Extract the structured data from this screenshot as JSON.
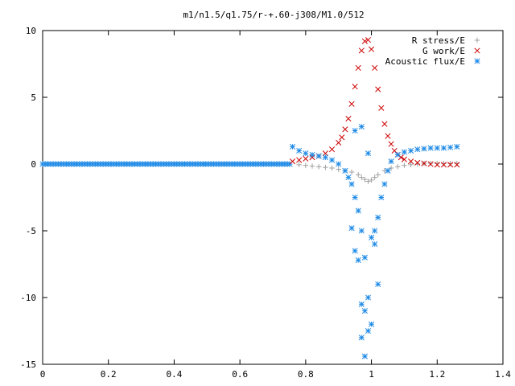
{
  "chart_data": {
    "type": "scatter",
    "title": "m1/n1.5/q1.75/r-+.60-j308/M1.0/512",
    "xlabel": "",
    "ylabel": "",
    "xlim": [
      0,
      1.4
    ],
    "ylim": [
      -15,
      10
    ],
    "x_ticks": [
      "0",
      "0.2",
      "0.4",
      "0.6",
      "0.8",
      "1",
      "1.2",
      "1.4"
    ],
    "y_ticks": [
      "10",
      "5",
      "0",
      "-5",
      "-10",
      "-15"
    ],
    "grid": false,
    "legend_position": "top-right",
    "series": [
      {
        "name": "R stress/E",
        "marker": "+",
        "color": "#a0a0a0",
        "x": [
          0.78,
          0.8,
          0.82,
          0.84,
          0.86,
          0.88,
          0.9,
          0.92,
          0.94,
          0.96,
          0.97,
          0.98,
          0.99,
          1.0,
          1.01,
          1.02,
          1.04,
          1.06,
          1.08,
          1.1,
          1.12,
          1.14,
          1.16,
          1.18,
          1.2,
          1.22,
          1.24,
          1.26
        ],
        "y": [
          -0.05,
          -0.1,
          -0.15,
          -0.2,
          -0.25,
          -0.3,
          -0.4,
          -0.5,
          -0.6,
          -0.8,
          -1.0,
          -1.15,
          -1.3,
          -1.2,
          -1.0,
          -0.8,
          -0.5,
          -0.3,
          -0.2,
          -0.1,
          -0.05,
          0.0,
          0.05,
          0.05,
          0.05,
          0.05,
          0.05,
          0.05
        ]
      },
      {
        "name": "G work/E",
        "marker": "x",
        "color": "#cc0000",
        "x": [
          0.76,
          0.78,
          0.8,
          0.82,
          0.84,
          0.86,
          0.88,
          0.9,
          0.91,
          0.92,
          0.93,
          0.94,
          0.95,
          0.96,
          0.97,
          0.98,
          0.99,
          1.0,
          1.01,
          1.02,
          1.03,
          1.04,
          1.05,
          1.06,
          1.07,
          1.08,
          1.09,
          1.1,
          1.12,
          1.14,
          1.16,
          1.18,
          1.2,
          1.22,
          1.24,
          1.26
        ],
        "y": [
          0.2,
          0.3,
          0.4,
          0.5,
          0.6,
          0.8,
          1.1,
          1.6,
          2.0,
          2.6,
          3.4,
          4.5,
          5.8,
          7.2,
          8.5,
          9.2,
          9.3,
          8.6,
          7.2,
          5.6,
          4.2,
          3.0,
          2.1,
          1.5,
          1.0,
          0.7,
          0.5,
          0.35,
          0.2,
          0.1,
          0.05,
          0.0,
          -0.05,
          -0.05,
          -0.05,
          -0.05
        ]
      },
      {
        "name": "Acoustic flux/E",
        "marker": "*",
        "color": "#1e8ae6",
        "x": [
          0.76,
          0.78,
          0.8,
          0.82,
          0.84,
          0.86,
          0.88,
          0.9,
          0.92,
          0.93,
          0.94,
          0.95,
          0.96,
          0.97,
          0.98,
          0.99,
          1.0,
          1.01,
          1.02,
          1.03,
          1.04,
          1.05,
          1.06,
          1.08,
          1.1,
          1.12,
          1.14,
          1.16,
          1.18,
          1.2,
          1.22,
          1.24,
          1.26,
          0.94,
          0.95,
          0.97,
          0.98,
          0.96,
          0.99,
          1.0,
          0.97,
          0.98,
          1.01,
          1.02,
          0.95,
          0.97,
          0.99
        ],
        "y": [
          1.3,
          1.0,
          0.8,
          0.7,
          0.6,
          0.5,
          0.3,
          0.0,
          -0.5,
          -1.0,
          -1.5,
          -2.5,
          -3.5,
          -5.0,
          -7.0,
          -10.0,
          -12.0,
          -6.0,
          -4.0,
          -2.5,
          -1.5,
          -0.5,
          0.2,
          0.7,
          0.9,
          1.0,
          1.1,
          1.15,
          1.2,
          1.2,
          1.2,
          1.25,
          1.3,
          -4.8,
          -6.5,
          -10.5,
          -11.0,
          -7.2,
          -12.5,
          -5.5,
          -13.0,
          -14.4,
          -5.0,
          -9.0,
          2.5,
          2.8,
          0.8
        ]
      }
    ]
  }
}
